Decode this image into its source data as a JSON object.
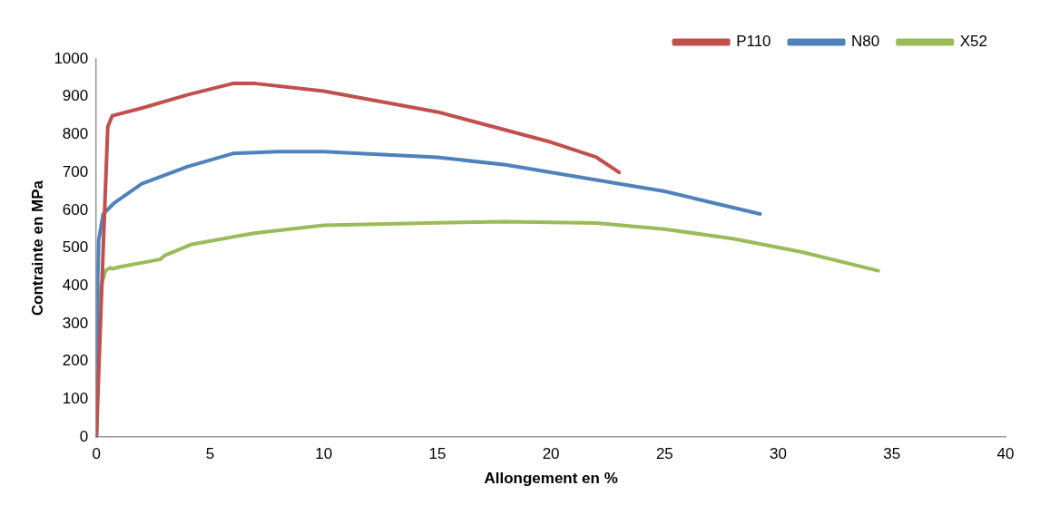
{
  "chart_data": {
    "type": "line",
    "xlabel": "Allongement en %",
    "ylabel": "Contrainte en MPa",
    "xlim": [
      0,
      40
    ],
    "xticks": [
      0,
      5,
      10,
      15,
      20,
      25,
      30,
      35,
      40
    ],
    "ylim": [
      0,
      1000
    ],
    "yticks": [
      0,
      100,
      200,
      300,
      400,
      500,
      600,
      700,
      800,
      900,
      1000
    ],
    "grid": false,
    "legend": "top right",
    "marker": "none",
    "line_style": "solid",
    "series": [
      {
        "name": "P110",
        "color": "#c0504d",
        "x": [
          0,
          0.3,
          0.5,
          0.7,
          2,
          4,
          6,
          7,
          10,
          15,
          20,
          22,
          23
        ],
        "values": [
          0,
          500,
          820,
          850,
          870,
          905,
          935,
          935,
          915,
          860,
          780,
          740,
          700
        ]
      },
      {
        "name": "N80",
        "color": "#4f81bd",
        "x": [
          0,
          0.05,
          0.1,
          0.3,
          0.8,
          2,
          4,
          6,
          8,
          10,
          15,
          18,
          22,
          25,
          29.2
        ],
        "values": [
          0,
          400,
          520,
          590,
          620,
          670,
          715,
          750,
          755,
          755,
          740,
          720,
          680,
          650,
          590
        ]
      },
      {
        "name": "X52",
        "color": "#9bbb59",
        "x": [
          0,
          0.1,
          0.2,
          0.4,
          0.6,
          0.7,
          1,
          2.8,
          3,
          4.2,
          7,
          10,
          15,
          18,
          22,
          25,
          28,
          31,
          34.4
        ],
        "values": [
          0,
          300,
          400,
          440,
          448,
          445,
          450,
          470,
          480,
          510,
          540,
          560,
          567,
          570,
          566,
          550,
          525,
          490,
          440
        ]
      }
    ]
  }
}
